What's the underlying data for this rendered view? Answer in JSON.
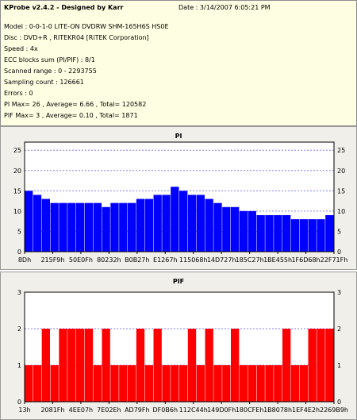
{
  "header": {
    "title": "KProbe v2.4.2 - Designed by Karr",
    "date": "Date : 3/14/2007 6:05:21 PM",
    "lines": [
      "Model : 0-0-1-0 LITE-ON DVDRW SHM-165H6S HS0E",
      "Disc : DVD+R , RITEKR04 [RiTEK Corporation]",
      "Speed : 4x",
      "ECC blocks sum (PI/PIF) : 8/1",
      "Scanned range : 0 - 2293755",
      "Sampling count : 126661",
      "Errors : 0",
      "PI Max= 26 , Average= 6.66 , Total= 120582",
      "PIF Max= 3 , Average= 0.10 , Total= 1871"
    ]
  },
  "colors": {
    "pi_bar": "#0000ff",
    "pif_bar": "#ff0000",
    "title": "#0000aa",
    "grid": "#8080ff",
    "background": "#ffffff",
    "panel": "#f0efea"
  },
  "chart_data": [
    {
      "type": "bar",
      "title": "PI",
      "ylim": [
        0,
        27
      ],
      "yticks": [
        0,
        5,
        10,
        15,
        20,
        25
      ],
      "xticks": [
        "8Dh",
        "215F9h",
        "50E0Fh",
        "80232h",
        "B0B27h",
        "E1267h",
        "115068h",
        "14D727h",
        "185C27h",
        "1BE455h",
        "1F6D68h",
        "22F71Fh"
      ],
      "grid": true,
      "series": [
        {
          "values": [
            15,
            14,
            13,
            12,
            12,
            12,
            12,
            12,
            12,
            11,
            12,
            12,
            12,
            13,
            13,
            14,
            14,
            16,
            15,
            14,
            14,
            13,
            12,
            11,
            11,
            10,
            10,
            9,
            9,
            9,
            9,
            8,
            8,
            8,
            8,
            9
          ]
        }
      ]
    },
    {
      "type": "bar",
      "title": "PIF",
      "ylim": [
        0,
        3
      ],
      "yticks": [
        0,
        1,
        2,
        3
      ],
      "xticks": [
        "13h",
        "2081Fh",
        "4EE07h",
        "7E02Eh",
        "AD79Fh",
        "DF0B6h",
        "112C44h",
        "149D0Fh",
        "180CFEh",
        "1B8078h",
        "1EF4E2h",
        "2269B9h"
      ],
      "grid": true,
      "series": [
        {
          "values": [
            1,
            1,
            2,
            1,
            2,
            2,
            2,
            2,
            1,
            2,
            1,
            1,
            1,
            2,
            1,
            2,
            1,
            1,
            1,
            2,
            1,
            2,
            1,
            1,
            2,
            1,
            1,
            1,
            1,
            1,
            2,
            1,
            1,
            2,
            2,
            2
          ]
        }
      ]
    }
  ]
}
